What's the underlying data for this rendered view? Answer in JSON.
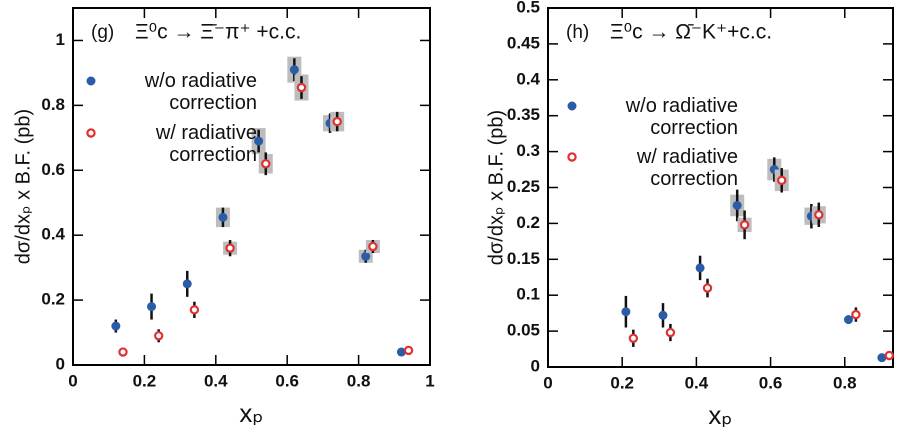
{
  "chart_data": [
    {
      "type": "scatter",
      "panel": "(g)",
      "title": "Ξ⁰c → Ξ̄⁻π⁺ +c.c.",
      "xlabel": "xₚ",
      "ylabel": "dσ/dxₚ x B.F. (pb)",
      "xlim": [
        0,
        1
      ],
      "ylim": [
        0,
        1.1
      ],
      "xticks": [
        0,
        0.2,
        0.4,
        0.6,
        0.8,
        1
      ],
      "yticks": [
        0,
        0.2,
        0.4,
        0.6,
        0.8,
        1
      ],
      "series": [
        {
          "name": "w/o radiative correction",
          "color": "#2a5ca8",
          "x": [
            0.12,
            0.22,
            0.32,
            0.42,
            0.52,
            0.62,
            0.72,
            0.82,
            0.92
          ],
          "values": [
            0.12,
            0.18,
            0.25,
            0.455,
            0.69,
            0.91,
            0.745,
            0.335,
            0.04
          ],
          "errors": [
            0.02,
            0.04,
            0.04,
            0.03,
            0.035,
            0.035,
            0.03,
            0.02,
            0.005
          ],
          "syst": [
            null,
            null,
            null,
            0.03,
            0.04,
            0.04,
            0.025,
            0.02,
            null
          ]
        },
        {
          "name": "w/ radiative correction",
          "color": "#e03030",
          "x": [
            0.14,
            0.24,
            0.34,
            0.44,
            0.54,
            0.64,
            0.74,
            0.84,
            0.94
          ],
          "values": [
            0.04,
            0.09,
            0.17,
            0.36,
            0.62,
            0.855,
            0.75,
            0.365,
            0.045
          ],
          "errors": [
            0.005,
            0.02,
            0.025,
            0.025,
            0.035,
            0.035,
            0.03,
            0.02,
            0.005
          ],
          "syst": [
            null,
            null,
            null,
            0.02,
            0.03,
            0.04,
            0.03,
            0.02,
            null
          ]
        }
      ]
    },
    {
      "type": "scatter",
      "panel": "(h)",
      "title": "Ξ⁰c → Ω̄⁻K⁺+c.c.",
      "xlabel": "xₚ",
      "ylabel": "dσ/dxₚ x B.F. (pb)",
      "xlim": [
        0,
        0.93
      ],
      "ylim": [
        0,
        0.5
      ],
      "xticks": [
        0,
        0.2,
        0.4,
        0.6,
        0.8
      ],
      "yticks": [
        0,
        0.05,
        0.1,
        0.15,
        0.2,
        0.25,
        0.3,
        0.35,
        0.4,
        0.45,
        0.5
      ],
      "series": [
        {
          "name": "w/o radiative correction",
          "color": "#2a5ca8",
          "x": [
            0.21,
            0.31,
            0.41,
            0.51,
            0.61,
            0.71,
            0.81,
            0.9
          ],
          "values": [
            0.077,
            0.072,
            0.138,
            0.225,
            0.275,
            0.21,
            0.066,
            0.013
          ],
          "errors": [
            0.022,
            0.017,
            0.017,
            0.022,
            0.017,
            0.017,
            0.006,
            0.003
          ],
          "syst": [
            null,
            null,
            null,
            0.015,
            0.015,
            0.012,
            null,
            null
          ]
        },
        {
          "name": "w/ radiative correction",
          "color": "#e03030",
          "x": [
            0.23,
            0.33,
            0.43,
            0.53,
            0.63,
            0.73,
            0.83,
            0.92
          ],
          "values": [
            0.04,
            0.048,
            0.11,
            0.198,
            0.26,
            0.212,
            0.073,
            0.016
          ],
          "errors": [
            0.012,
            0.012,
            0.013,
            0.02,
            0.017,
            0.017,
            0.01,
            0.003
          ],
          "syst": [
            null,
            null,
            null,
            0.01,
            0.015,
            0.012,
            null,
            null
          ]
        }
      ]
    }
  ]
}
